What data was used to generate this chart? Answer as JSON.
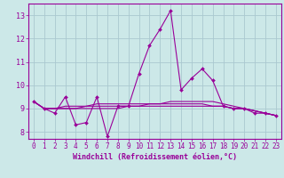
{
  "xlabel": "Windchill (Refroidissement éolien,°C)",
  "ylabel": "",
  "background_color": "#cce8e8",
  "grid_color": "#aac8d0",
  "line_color": "#990099",
  "spine_color": "#990099",
  "tick_color": "#990099",
  "x_ticks": [
    0,
    1,
    2,
    3,
    4,
    5,
    6,
    7,
    8,
    9,
    10,
    11,
    12,
    13,
    14,
    15,
    16,
    17,
    18,
    19,
    20,
    21,
    22,
    23
  ],
  "y_ticks": [
    8,
    9,
    10,
    11,
    12,
    13
  ],
  "ylim": [
    7.7,
    13.5
  ],
  "xlim": [
    -0.5,
    23.5
  ],
  "series": [
    [
      9.3,
      9.0,
      8.8,
      9.5,
      8.3,
      8.4,
      9.5,
      7.8,
      9.1,
      9.1,
      10.5,
      11.7,
      12.4,
      13.2,
      9.8,
      10.3,
      10.7,
      10.2,
      9.1,
      9.0,
      9.0,
      8.8,
      8.8,
      8.7
    ],
    [
      9.3,
      9.0,
      9.0,
      9.0,
      9.0,
      9.0,
      9.0,
      9.0,
      9.0,
      9.1,
      9.1,
      9.2,
      9.2,
      9.3,
      9.3,
      9.3,
      9.3,
      9.3,
      9.2,
      9.1,
      9.0,
      8.9,
      8.8,
      8.7
    ],
    [
      9.3,
      9.0,
      9.0,
      9.1,
      9.1,
      9.1,
      9.2,
      9.2,
      9.2,
      9.2,
      9.2,
      9.2,
      9.2,
      9.2,
      9.2,
      9.2,
      9.2,
      9.1,
      9.1,
      9.0,
      9.0,
      8.9,
      8.8,
      8.7
    ],
    [
      9.3,
      9.0,
      9.0,
      9.0,
      9.0,
      9.1,
      9.1,
      9.1,
      9.1,
      9.1,
      9.1,
      9.1,
      9.1,
      9.1,
      9.1,
      9.1,
      9.1,
      9.1,
      9.1,
      9.0,
      9.0,
      8.9,
      8.8,
      8.7
    ]
  ],
  "tick_fontsize": 5.5,
  "xlabel_fontsize": 6.0
}
